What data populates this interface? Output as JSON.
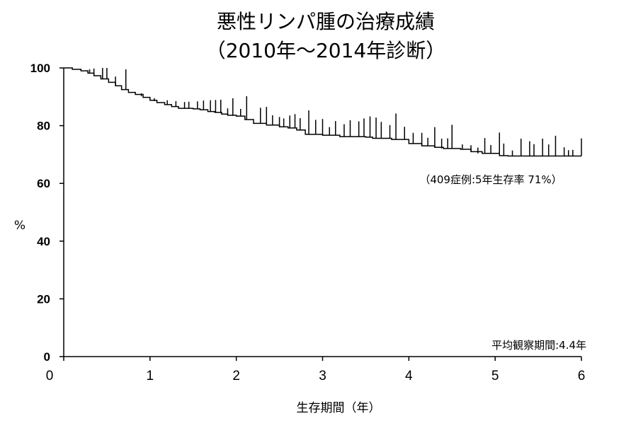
{
  "chart_data": {
    "type": "line",
    "title": "悪性リンパ腫の治療成績",
    "subtitle": "（2010年～2014年診断）",
    "xlabel": "生存期間（年）",
    "ylabel": "%",
    "xlim": [
      0,
      6
    ],
    "ylim": [
      0,
      100
    ],
    "x_ticks": [
      "0",
      "1",
      "2",
      "3",
      "4",
      "5",
      "6"
    ],
    "y_ticks": [
      "0",
      "20",
      "40",
      "60",
      "80",
      "100"
    ],
    "grid": false,
    "annotation": "（409症例:5年生存率 71%）",
    "footnote": "平均観察期間:4.4年",
    "series": [
      {
        "steps": [
          [
            0,
            100
          ],
          [
            0.1,
            99.5
          ],
          [
            0.2,
            99
          ],
          [
            0.28,
            98.2
          ],
          [
            0.35,
            97.3
          ],
          [
            0.43,
            96.2
          ],
          [
            0.52,
            95
          ],
          [
            0.6,
            93.8
          ],
          [
            0.67,
            92.5
          ],
          [
            0.75,
            91.5
          ],
          [
            0.83,
            90.8
          ],
          [
            0.92,
            89.8
          ],
          [
            1.0,
            88.8
          ],
          [
            1.08,
            88
          ],
          [
            1.17,
            87.3
          ],
          [
            1.25,
            86.6
          ],
          [
            1.33,
            86
          ],
          [
            1.5,
            85.8
          ],
          [
            1.58,
            85.5
          ],
          [
            1.67,
            84.9
          ],
          [
            1.75,
            84.6
          ],
          [
            1.83,
            84
          ],
          [
            1.9,
            83.6
          ],
          [
            2.0,
            83.3
          ],
          [
            2.1,
            82.1
          ],
          [
            2.2,
            80.8
          ],
          [
            2.35,
            80.2
          ],
          [
            2.5,
            79.6
          ],
          [
            2.6,
            79.2
          ],
          [
            2.7,
            78.5
          ],
          [
            2.8,
            77
          ],
          [
            3.0,
            76.7
          ],
          [
            3.2,
            76.2
          ],
          [
            3.5,
            76
          ],
          [
            3.58,
            75.6
          ],
          [
            3.8,
            75.2
          ],
          [
            4.0,
            73.8
          ],
          [
            4.15,
            73
          ],
          [
            4.3,
            72.5
          ],
          [
            4.4,
            72.1
          ],
          [
            4.6,
            71.8
          ],
          [
            4.72,
            71
          ],
          [
            4.85,
            70.4
          ],
          [
            5.05,
            69.6
          ],
          [
            5.15,
            69.5
          ],
          [
            6.0,
            69.5
          ]
        ],
        "censored": [
          [
            0.2,
            99
          ],
          [
            0.3,
            98.2
          ],
          [
            0.35,
            97.3
          ],
          [
            0.45,
            96.2
          ],
          [
            0.5,
            96.2
          ],
          [
            0.6,
            93.8
          ],
          [
            0.72,
            92.5
          ],
          [
            0.9,
            90.2
          ],
          [
            1.05,
            88.5
          ],
          [
            1.2,
            87.3
          ],
          [
            1.3,
            86.6
          ],
          [
            1.4,
            86
          ],
          [
            1.45,
            86
          ],
          [
            1.55,
            85.8
          ],
          [
            1.62,
            85.5
          ],
          [
            1.7,
            84.9
          ],
          [
            1.76,
            84.6
          ],
          [
            1.82,
            84.3
          ],
          [
            1.9,
            83.6
          ],
          [
            1.96,
            83.4
          ],
          [
            2.05,
            83.3
          ],
          [
            2.12,
            82.1
          ],
          [
            2.28,
            80.8
          ],
          [
            2.35,
            80.2
          ],
          [
            2.42,
            80.2
          ],
          [
            2.5,
            79.6
          ],
          [
            2.55,
            79.6
          ],
          [
            2.62,
            79.2
          ],
          [
            2.68,
            79.2
          ],
          [
            2.74,
            78.5
          ],
          [
            2.84,
            77
          ],
          [
            2.92,
            77
          ],
          [
            3.0,
            76.7
          ],
          [
            3.08,
            76.7
          ],
          [
            3.15,
            76.7
          ],
          [
            3.25,
            76.2
          ],
          [
            3.32,
            76.2
          ],
          [
            3.42,
            76.2
          ],
          [
            3.48,
            76.2
          ],
          [
            3.55,
            76
          ],
          [
            3.62,
            75.6
          ],
          [
            3.68,
            75.6
          ],
          [
            3.78,
            75.6
          ],
          [
            3.85,
            75.2
          ],
          [
            3.95,
            75.2
          ],
          [
            4.05,
            73.8
          ],
          [
            4.15,
            73
          ],
          [
            4.22,
            73
          ],
          [
            4.3,
            72.5
          ],
          [
            4.38,
            72.1
          ],
          [
            4.45,
            72.1
          ],
          [
            4.5,
            72.1
          ],
          [
            4.62,
            71.8
          ],
          [
            4.72,
            71
          ],
          [
            4.8,
            70.4
          ],
          [
            4.88,
            70.4
          ],
          [
            4.95,
            70.4
          ],
          [
            5.05,
            70.4
          ],
          [
            5.1,
            69.6
          ],
          [
            5.2,
            69.5
          ],
          [
            5.3,
            69.5
          ],
          [
            5.4,
            69.5
          ],
          [
            5.45,
            69.5
          ],
          [
            5.55,
            69.5
          ],
          [
            5.62,
            69.5
          ],
          [
            5.7,
            69.5
          ],
          [
            5.8,
            69.5
          ],
          [
            5.85,
            69.5
          ],
          [
            5.9,
            69.5
          ],
          [
            6.0,
            69.5
          ]
        ],
        "censor_tops": [
          99.5,
          99.5,
          99.8,
          100,
          100,
          97,
          99.5,
          91.2,
          89.5,
          88.8,
          88.5,
          88.2,
          88.3,
          88.4,
          88.7,
          88.8,
          88.9,
          89,
          86,
          89.5,
          85.8,
          90.2,
          86.2,
          86.5,
          83.6,
          83,
          82.5,
          83.5,
          84,
          82.6,
          85.3,
          82,
          82.3,
          79.5,
          81.6,
          80.5,
          81.9,
          81.5,
          82.5,
          83.2,
          82.8,
          81.3,
          80.2,
          84.2,
          79.6,
          77.5,
          77.5,
          75.8,
          79.5,
          75.5,
          75.6,
          80.3,
          73.5,
          73.2,
          72.4,
          75.7,
          73.3,
          77.6,
          73.8,
          71.4,
          75.5,
          74.6,
          73.6,
          75.5,
          73.5,
          76.5,
          72.5,
          71.5,
          71.6,
          75.6
        ]
      }
    ],
    "colors": {
      "line": "#000000",
      "background": "#ffffff"
    }
  }
}
